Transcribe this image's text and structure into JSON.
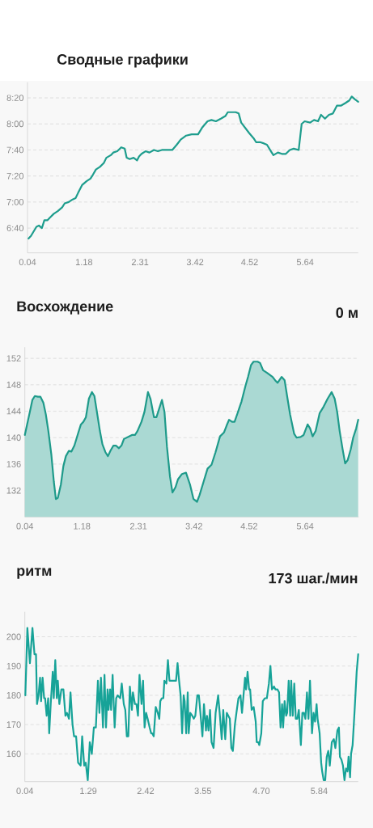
{
  "chart_data": [
    {
      "type": "line",
      "title": "Сводные графики",
      "x": [
        0.06,
        0.11,
        0.22,
        0.27,
        0.33,
        0.38,
        0.44,
        0.49,
        0.57,
        0.65,
        0.74,
        0.79,
        0.87,
        0.95,
        1.01,
        1.06,
        1.14,
        1.23,
        1.31,
        1.36,
        1.42,
        1.5,
        1.58,
        1.63,
        1.72,
        1.77,
        1.85,
        1.93,
        2.0,
        2.04,
        2.1,
        2.18,
        2.25,
        2.29,
        2.34,
        2.42,
        2.5,
        2.59,
        2.67,
        2.75,
        2.83,
        2.91,
        2.96,
        3.05,
        3.13,
        3.24,
        3.35,
        3.4,
        3.48,
        3.56,
        3.67,
        3.75,
        3.84,
        3.94,
        4.03,
        4.08,
        4.16,
        4.24,
        4.3,
        4.35,
        4.43,
        4.51,
        4.6,
        4.65,
        4.73,
        4.81,
        4.87,
        4.95,
        5.0,
        5.09,
        5.17,
        5.25,
        5.33,
        5.41,
        5.51,
        5.57,
        5.63,
        5.74,
        5.82,
        5.9,
        5.96,
        6.04,
        6.12,
        6.2,
        6.28,
        6.36,
        6.45,
        6.53,
        6.58,
        6.64,
        6.71
      ],
      "values": [
        392,
        394,
        401,
        402,
        400,
        406,
        406,
        408,
        411,
        413,
        416,
        419,
        420,
        422,
        423,
        427,
        433,
        436,
        438,
        441,
        445,
        447,
        450,
        454,
        456,
        458,
        459,
        462,
        461,
        454,
        453,
        454,
        452,
        455,
        457,
        459,
        458,
        460,
        459,
        460,
        460,
        460,
        460,
        464,
        468,
        471,
        472,
        472,
        472,
        477,
        482,
        483,
        482,
        484,
        486,
        489,
        489,
        489,
        488,
        481,
        477,
        473,
        469,
        466,
        466,
        465,
        464,
        459,
        456,
        458,
        457,
        457,
        460,
        461,
        460,
        480,
        482,
        481,
        483,
        482,
        487,
        484,
        487,
        488,
        494,
        494,
        496,
        498,
        501,
        499,
        497
      ],
      "color": "#1e9d8d",
      "xlim": [
        0.04,
        6.71
      ],
      "ylim": [
        381,
        512
      ],
      "xticks": [
        0.04,
        1.18,
        2.31,
        3.42,
        4.52,
        5.64
      ],
      "yticks": [
        {
          "value": 400,
          "label": "6:40"
        },
        {
          "value": 420,
          "label": "7:00"
        },
        {
          "value": 440,
          "label": "7:20"
        },
        {
          "value": 460,
          "label": "7:40"
        },
        {
          "value": 480,
          "label": "8:00"
        },
        {
          "value": 500,
          "label": "8:20"
        }
      ],
      "grid": "y"
    },
    {
      "type": "area",
      "title": "Восхождение",
      "annotations": [
        "0 м"
      ],
      "x": [
        0.04,
        0.08,
        0.14,
        0.19,
        0.24,
        0.3,
        0.35,
        0.41,
        0.46,
        0.51,
        0.57,
        0.62,
        0.66,
        0.7,
        0.76,
        0.81,
        0.86,
        0.92,
        0.97,
        1.03,
        1.11,
        1.16,
        1.21,
        1.26,
        1.32,
        1.38,
        1.43,
        1.48,
        1.54,
        1.59,
        1.65,
        1.7,
        1.75,
        1.81,
        1.86,
        1.92,
        1.97,
        2.02,
        2.1,
        2.18,
        2.24,
        2.29,
        2.37,
        2.43,
        2.5,
        2.55,
        2.62,
        2.67,
        2.72,
        2.78,
        2.83,
        2.88,
        2.94,
        2.99,
        3.05,
        3.1,
        3.18,
        3.26,
        3.34,
        3.41,
        3.48,
        3.53,
        3.61,
        3.69,
        3.77,
        3.85,
        3.94,
        4.02,
        4.07,
        4.12,
        4.18,
        4.23,
        4.29,
        4.37,
        4.45,
        4.5,
        4.56,
        4.61,
        4.69,
        4.74,
        4.8,
        4.88,
        4.99,
        5.04,
        5.09,
        5.17,
        5.23,
        5.28,
        5.34,
        5.42,
        5.47,
        5.55,
        5.61,
        5.69,
        5.74,
        5.79,
        5.85,
        5.93,
        6.01,
        6.09,
        6.17,
        6.23,
        6.28,
        6.33,
        6.39,
        6.44,
        6.49,
        6.55,
        6.6,
        6.66,
        6.7
      ],
      "values": [
        140.4,
        141.8,
        143.9,
        145.7,
        146.3,
        146.2,
        146.2,
        145.3,
        143.5,
        141.0,
        137.4,
        133.3,
        130.7,
        130.9,
        132.9,
        135.7,
        137.2,
        138.0,
        137.9,
        138.8,
        140.8,
        142.0,
        142.4,
        143.1,
        145.9,
        146.9,
        146.3,
        143.9,
        141.0,
        139.0,
        137.8,
        137.2,
        138.0,
        138.8,
        138.8,
        138.4,
        138.8,
        139.8,
        140.1,
        140.4,
        140.4,
        141.0,
        142.4,
        143.9,
        146.9,
        145.9,
        143.1,
        143.1,
        144.3,
        145.7,
        143.9,
        138.6,
        134.1,
        131.7,
        132.5,
        133.7,
        134.5,
        134.7,
        132.9,
        130.7,
        130.3,
        131.3,
        133.3,
        135.3,
        135.9,
        137.8,
        140.2,
        140.8,
        141.8,
        142.7,
        142.4,
        142.4,
        143.7,
        145.5,
        147.9,
        149.2,
        151.0,
        151.5,
        151.5,
        151.3,
        150.2,
        149.8,
        149.2,
        148.7,
        148.3,
        149.2,
        148.7,
        146.3,
        143.5,
        140.6,
        140.0,
        140.1,
        140.4,
        142.0,
        141.4,
        140.2,
        141.0,
        143.7,
        144.7,
        145.9,
        146.9,
        145.9,
        143.9,
        141.0,
        138.2,
        136.1,
        136.6,
        138.2,
        140.0,
        141.4,
        142.7
      ],
      "color": "#1e9a8a",
      "xlim": [
        0.04,
        6.71
      ],
      "ylim": [
        128,
        153.7
      ],
      "xticks": [
        0.04,
        1.18,
        2.31,
        3.42,
        4.52,
        5.64
      ],
      "yticks": [
        132,
        136,
        140,
        144,
        148,
        152
      ],
      "grid": "y"
    },
    {
      "type": "line",
      "title": "ритм",
      "annotations": [
        "173 шаг./мин"
      ],
      "x": [
        0.05,
        0.09,
        0.14,
        0.19,
        0.23,
        0.26,
        0.28,
        0.31,
        0.34,
        0.36,
        0.39,
        0.42,
        0.44,
        0.47,
        0.5,
        0.52,
        0.55,
        0.59,
        0.61,
        0.64,
        0.67,
        0.69,
        0.72,
        0.76,
        0.8,
        0.84,
        0.87,
        0.91,
        0.94,
        0.98,
        1.01,
        1.05,
        1.09,
        1.14,
        1.17,
        1.21,
        1.24,
        1.28,
        1.32,
        1.36,
        1.4,
        1.44,
        1.48,
        1.51,
        1.54,
        1.58,
        1.61,
        1.64,
        1.67,
        1.69,
        1.72,
        1.74,
        1.77,
        1.81,
        1.84,
        1.87,
        1.92,
        1.95,
        1.99,
        2.02,
        2.05,
        2.08,
        2.11,
        2.15,
        2.17,
        2.21,
        2.24,
        2.27,
        2.3,
        2.34,
        2.37,
        2.4,
        2.43,
        2.46,
        2.5,
        2.53,
        2.55,
        2.58,
        2.62,
        2.66,
        2.69,
        2.71,
        2.74,
        2.77,
        2.79,
        2.83,
        2.86,
        2.89,
        2.92,
        2.95,
        2.99,
        3.02,
        3.05,
        3.08,
        3.11,
        3.14,
        3.17,
        3.19,
        3.22,
        3.25,
        3.27,
        3.3,
        3.34,
        3.37,
        3.4,
        3.44,
        3.47,
        3.51,
        3.54,
        3.57,
        3.61,
        3.63,
        3.66,
        3.69,
        3.72,
        3.76,
        3.8,
        3.85,
        3.88,
        3.92,
        3.95,
        3.99,
        4.02,
        4.05,
        4.08,
        4.11,
        4.14,
        4.18,
        4.21,
        4.25,
        4.29,
        4.32,
        4.35,
        4.38,
        4.4,
        4.43,
        4.46,
        4.48,
        4.51,
        4.55,
        4.59,
        4.61,
        4.64,
        4.66,
        4.7,
        4.73,
        4.77,
        4.81,
        4.85,
        4.88,
        4.91,
        4.95,
        4.98,
        5.02,
        5.05,
        5.08,
        5.11,
        5.13,
        5.16,
        5.19,
        5.21,
        5.24,
        5.27,
        5.29,
        5.32,
        5.35,
        5.38,
        5.41,
        5.44,
        5.48,
        5.51,
        5.54,
        5.57,
        5.6,
        5.63,
        5.66,
        5.7,
        5.73,
        5.76,
        5.79,
        5.81,
        5.85,
        5.88,
        5.9,
        5.93,
        5.96,
        5.99,
        6.02,
        6.05,
        6.09,
        6.13,
        6.16,
        6.2,
        6.23,
        6.25,
        6.28,
        6.31,
        6.34,
        6.37,
        6.4,
        6.42,
        6.45,
        6.47,
        6.5,
        6.54,
        6.58,
        6.61
      ],
      "values": [
        180,
        203,
        191,
        203,
        194,
        194,
        177,
        180,
        186,
        178,
        186,
        179,
        179,
        173,
        179,
        167,
        177,
        188,
        179,
        192,
        179,
        185,
        177,
        182,
        182,
        173,
        174,
        172,
        181,
        170,
        166,
        166,
        157,
        156,
        166,
        156,
        157,
        151,
        164,
        160,
        169,
        169,
        185,
        174,
        186,
        169,
        187,
        169,
        182,
        175,
        182,
        175,
        187,
        169,
        179,
        180,
        179,
        184,
        177,
        175,
        166,
        166,
        183,
        175,
        181,
        177,
        177,
        173,
        187,
        177,
        185,
        169,
        174,
        172,
        169,
        167,
        167,
        166,
        176,
        174,
        172,
        178,
        179,
        179,
        185,
        184,
        192,
        185,
        185,
        185,
        185,
        185,
        191,
        185,
        180,
        167,
        180,
        178,
        167,
        181,
        167,
        174,
        173,
        172,
        173,
        180,
        180,
        172,
        166,
        177,
        168,
        173,
        168,
        175,
        164,
        162,
        174,
        180,
        174,
        165,
        175,
        165,
        174,
        173,
        172,
        162,
        161,
        170,
        174,
        179,
        180,
        174,
        180,
        186,
        182,
        188,
        182,
        182,
        175,
        176,
        171,
        164,
        164,
        163,
        167,
        178,
        179,
        179,
        184,
        190,
        182,
        183,
        182,
        182,
        181,
        169,
        177,
        169,
        178,
        173,
        174,
        185,
        173,
        185,
        173,
        184,
        172,
        172,
        175,
        163,
        174,
        174,
        172,
        181,
        172,
        185,
        167,
        174,
        171,
        177,
        172,
        167,
        157,
        154,
        151,
        151,
        159,
        161,
        156,
        164,
        165,
        162,
        168,
        169,
        159,
        158,
        156,
        151,
        155,
        154,
        159,
        152,
        160,
        163,
        175,
        188,
        194
      ],
      "color": "#17a398",
      "xlim": [
        0.04,
        6.61
      ],
      "ylim": [
        150.5,
        208.5
      ],
      "xticks": [
        0.04,
        1.29,
        2.42,
        3.55,
        {
          "value": 4.7,
          "label": "4.70"
        },
        5.84
      ],
      "yticks": [
        160,
        170,
        180,
        190,
        200
      ],
      "grid": "y"
    }
  ]
}
